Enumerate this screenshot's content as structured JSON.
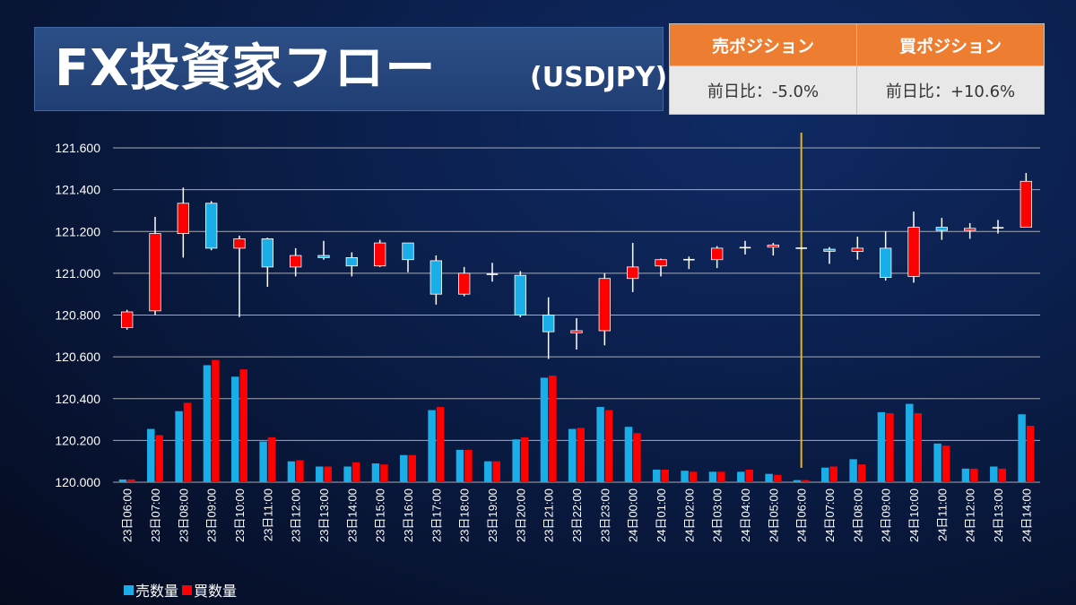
{
  "header": {
    "title": "FX投資家フロー",
    "pair": "(USDJPY)"
  },
  "position_table": {
    "sell_label": "売ポジション",
    "buy_label": "買ポジション",
    "sell_change": "前日比：-5.0%",
    "buy_change": "前日比：+10.6%"
  },
  "colors": {
    "sell": "#1aaee8",
    "buy": "#ff0000",
    "marker_line": "#e8b416",
    "grid": "#d9d9d9",
    "header_orange": "#ed7d31"
  },
  "chart_data": {
    "type": "candlestick+bar",
    "ylim": [
      120.0,
      121.6
    ],
    "y_ticks": [
      "120.000",
      "120.200",
      "120.400",
      "120.600",
      "120.800",
      "121.000",
      "121.200",
      "121.400",
      "121.600"
    ],
    "categories": [
      "23日06:00",
      "23日07:00",
      "23日08:00",
      "23日09:00",
      "23日10:00",
      "23日11:00",
      "23日12:00",
      "23日13:00",
      "23日14:00",
      "23日15:00",
      "23日16:00",
      "23日17:00",
      "23日18:00",
      "23日19:00",
      "23日20:00",
      "23日21:00",
      "23日22:00",
      "23日23:00",
      "24日00:00",
      "24日01:00",
      "24日02:00",
      "24日03:00",
      "24日04:00",
      "24日05:00",
      "24日06:00",
      "24日07:00",
      "24日08:00",
      "24日09:00",
      "24日10:00",
      "24日11:00",
      "24日12:00",
      "24日13:00",
      "24日14:00"
    ],
    "candles": [
      {
        "o": 120.74,
        "h": 120.825,
        "l": 120.73,
        "c": 120.815
      },
      {
        "o": 120.82,
        "h": 121.27,
        "l": 120.8,
        "c": 121.19
      },
      {
        "o": 121.19,
        "h": 121.41,
        "l": 121.075,
        "c": 121.335
      },
      {
        "o": 121.335,
        "h": 121.345,
        "l": 121.11,
        "c": 121.12
      },
      {
        "o": 121.12,
        "h": 121.18,
        "l": 120.79,
        "c": 121.165
      },
      {
        "o": 121.165,
        "h": 121.17,
        "l": 120.935,
        "c": 121.03
      },
      {
        "o": 121.03,
        "h": 121.12,
        "l": 120.985,
        "c": 121.085
      },
      {
        "o": 121.085,
        "h": 121.155,
        "l": 121.065,
        "c": 121.075
      },
      {
        "o": 121.075,
        "h": 121.1,
        "l": 120.985,
        "c": 121.035
      },
      {
        "o": 121.035,
        "h": 121.16,
        "l": 121.03,
        "c": 121.145
      },
      {
        "o": 121.145,
        "h": 121.145,
        "l": 121.005,
        "c": 121.065
      },
      {
        "o": 121.06,
        "h": 121.085,
        "l": 120.85,
        "c": 120.9
      },
      {
        "o": 120.9,
        "h": 121.03,
        "l": 120.89,
        "c": 121.0
      },
      {
        "o": 120.995,
        "h": 121.05,
        "l": 120.96,
        "c": 120.995
      },
      {
        "o": 120.99,
        "h": 121.01,
        "l": 120.79,
        "c": 120.8
      },
      {
        "o": 120.8,
        "h": 120.885,
        "l": 120.59,
        "c": 120.72
      },
      {
        "o": 120.715,
        "h": 120.785,
        "l": 120.635,
        "c": 120.725
      },
      {
        "o": 120.725,
        "h": 121.0,
        "l": 120.655,
        "c": 120.975
      },
      {
        "o": 120.975,
        "h": 121.145,
        "l": 120.91,
        "c": 121.03
      },
      {
        "o": 121.035,
        "h": 121.07,
        "l": 120.985,
        "c": 121.065
      },
      {
        "o": 121.065,
        "h": 121.08,
        "l": 121.02,
        "c": 121.065
      },
      {
        "o": 121.065,
        "h": 121.13,
        "l": 121.025,
        "c": 121.12
      },
      {
        "o": 121.12,
        "h": 121.155,
        "l": 121.09,
        "c": 121.125
      },
      {
        "o": 121.125,
        "h": 121.145,
        "l": 121.085,
        "c": 121.135
      },
      {
        "o": 121.12,
        "h": 121.12,
        "l": 121.115,
        "c": 121.12
      },
      {
        "o": 121.115,
        "h": 121.125,
        "l": 121.045,
        "c": 121.105
      },
      {
        "o": 121.105,
        "h": 121.175,
        "l": 121.065,
        "c": 121.12
      },
      {
        "o": 121.12,
        "h": 121.2,
        "l": 120.965,
        "c": 120.98
      },
      {
        "o": 120.985,
        "h": 121.295,
        "l": 120.955,
        "c": 121.22
      },
      {
        "o": 121.22,
        "h": 121.265,
        "l": 121.16,
        "c": 121.205
      },
      {
        "o": 121.205,
        "h": 121.24,
        "l": 121.165,
        "c": 121.215
      },
      {
        "o": 121.215,
        "h": 121.255,
        "l": 121.19,
        "c": 121.22
      },
      {
        "o": 121.22,
        "h": 121.48,
        "l": 121.22,
        "c": 121.44
      }
    ],
    "series": [
      {
        "name": "売数量",
        "values": [
          120.013,
          120.255,
          120.34,
          120.56,
          120.505,
          120.195,
          120.1,
          120.075,
          120.075,
          120.09,
          120.13,
          120.345,
          120.155,
          120.1,
          120.205,
          120.5,
          120.255,
          120.36,
          120.265,
          120.06,
          120.055,
          120.05,
          120.05,
          120.04,
          120.01,
          120.07,
          120.11,
          120.335,
          120.375,
          120.185,
          120.065,
          120.075,
          120.325
        ]
      },
      {
        "name": "買数量",
        "values": [
          120.013,
          120.225,
          120.38,
          120.585,
          120.54,
          120.215,
          120.105,
          120.075,
          120.095,
          120.085,
          120.13,
          120.36,
          120.155,
          120.1,
          120.215,
          120.51,
          120.26,
          120.345,
          120.235,
          120.06,
          120.05,
          120.05,
          120.06,
          120.035,
          120.01,
          120.075,
          120.085,
          120.33,
          120.33,
          120.175,
          120.065,
          120.065,
          120.27
        ]
      }
    ],
    "vertical_marker_category": "24日06:00"
  }
}
